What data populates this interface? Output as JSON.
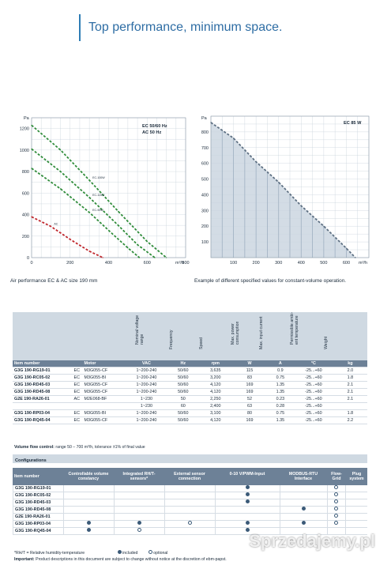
{
  "header": {
    "title": "Top performance, minimum space."
  },
  "chart_left": {
    "caption": "Air performance EC & AC size 190 mm",
    "legend": [
      "EC 50/60 Hz",
      "AC 50 Hz"
    ],
    "y_unit": "Pa",
    "x_unit": "m³/h",
    "y_ticks": [
      "1200",
      "1000",
      "800",
      "600",
      "400",
      "200",
      "0"
    ],
    "x_ticks": [
      "0",
      "200",
      "400",
      "600",
      "800"
    ],
    "curve_labels": [
      "EC-100W",
      "EC-115W",
      "EC-90W",
      "AC"
    ]
  },
  "chart_right": {
    "caption": "Example of different specified values for constant-volume operation.",
    "legend": "EC 85 W",
    "y_unit": "Pa",
    "x_unit": "m³/h",
    "y_ticks": [
      "800",
      "700",
      "600",
      "500",
      "400",
      "300",
      "200",
      "100"
    ],
    "x_ticks": [
      "100",
      "200",
      "300",
      "400",
      "500",
      "600"
    ]
  },
  "chart_data": [
    {
      "type": "line",
      "xlabel": "m³/h",
      "ylabel": "Pa",
      "xlim": [
        0,
        800
      ],
      "ylim": [
        0,
        1300
      ],
      "series": [
        {
          "name": "EC-100W",
          "x": [
            0,
            150,
            300,
            450,
            600,
            700
          ],
          "y": [
            1230,
            1000,
            720,
            430,
            150,
            0
          ]
        },
        {
          "name": "EC-115W",
          "x": [
            0,
            150,
            300,
            450,
            550,
            640
          ],
          "y": [
            1010,
            800,
            560,
            300,
            120,
            0
          ]
        },
        {
          "name": "EC-90W",
          "x": [
            0,
            150,
            300,
            420,
            500,
            560
          ],
          "y": [
            830,
            640,
            420,
            220,
            90,
            0
          ]
        },
        {
          "name": "AC",
          "x": [
            0,
            100,
            200,
            300,
            370
          ],
          "y": [
            380,
            290,
            170,
            60,
            0
          ]
        }
      ]
    },
    {
      "type": "area",
      "xlabel": "m³/h",
      "ylabel": "Pa",
      "xlim": [
        0,
        700
      ],
      "ylim": [
        0,
        900
      ],
      "series": [
        {
          "name": "EC 85 W",
          "x": [
            0,
            100,
            200,
            300,
            400,
            500,
            600,
            640
          ],
          "y": [
            860,
            760,
            610,
            480,
            330,
            200,
            60,
            0
          ]
        }
      ]
    }
  ],
  "specs": {
    "rot_headers": [
      "Nominal voltage range",
      "Frequency",
      "Speed",
      "Max. power consumption",
      "Max. input current",
      "Permissible ambi-ent temperature",
      "Weight"
    ],
    "columns": [
      "Item number",
      "",
      "Motor",
      "VAC",
      "Hz",
      "rpm",
      "W",
      "A",
      "°C",
      "kg"
    ],
    "rows": [
      [
        "G3G 190-RG19-01",
        "EC",
        "M3G055-CF",
        "1~200-240",
        "50/60",
        "3,635",
        "115",
        "0.9",
        "-25...+60",
        "2.0"
      ],
      [
        "G3G 190-RC05-02",
        "EC",
        "M3G055-BI",
        "1~200-240",
        "50/60",
        "3,200",
        "83",
        "0.75",
        "-25...+60",
        "1.8"
      ],
      [
        "G3G 190-RD45-03",
        "EC",
        "M3G055-CF",
        "1~200-240",
        "50/60",
        "4,120",
        "169",
        "1.35",
        "-25...+60",
        "2.1"
      ],
      [
        "G3G 190-RD45-08",
        "EC",
        "M3G055-CF",
        "1~200-240",
        "50/60",
        "4,120",
        "169",
        "1.35",
        "-25...+60",
        "2.1"
      ],
      [
        "G2E 190-RA26-01",
        "AC",
        "M2E068-BF",
        "1~230",
        "50",
        "2,250",
        "52",
        "0.23",
        "-25...+60",
        "2.1"
      ],
      [
        "",
        "",
        "",
        "1~230",
        "60",
        "2,400",
        "63",
        "0.28",
        "-25...+60",
        ""
      ],
      [
        "G3G 190-RP03-04",
        "EC",
        "M3G055-BI",
        "1~200-240",
        "50/60",
        "3,100",
        "80",
        "0.75",
        "-25...+60",
        "1.8"
      ],
      [
        "G3G 190-RQ45-04",
        "EC",
        "M3G055-CF",
        "1~200-240",
        "50/60",
        "4,120",
        "169",
        "1.35",
        "-25...+60",
        "2.2"
      ]
    ],
    "note_label": "Volume flow control:",
    "note_text": "range 50 – 700 m³/h, tolerance ±1% of final value"
  },
  "config": {
    "title": "Configurations",
    "headers": [
      "Item number",
      "Controllable volume constancy",
      "Integrated RH/T-sensors*",
      "External sensor connection",
      "0-10 V/PWM-Input",
      "MODBUS-RTU Interface",
      "Flow-Grid",
      "Plug system"
    ],
    "rows": [
      {
        "item": "G3G 190-RG19-01",
        "marks": [
          "",
          "",
          "",
          "f",
          "",
          "o",
          ""
        ]
      },
      {
        "item": "G3G 190-RC05-02",
        "marks": [
          "",
          "",
          "",
          "f",
          "",
          "o",
          ""
        ]
      },
      {
        "item": "G3G 190-RD45-03",
        "marks": [
          "",
          "",
          "",
          "f",
          "",
          "o",
          ""
        ]
      },
      {
        "item": "G3G 190-RD45-08",
        "marks": [
          "",
          "",
          "",
          "",
          "f",
          "o",
          ""
        ]
      },
      {
        "item": "G2E 190-RA26-01",
        "marks": [
          "",
          "",
          "",
          "",
          "",
          "o",
          ""
        ]
      },
      {
        "item": "G3G 190-RP03-04",
        "marks": [
          "f",
          "f",
          "o",
          "f",
          "f",
          "o",
          ""
        ]
      },
      {
        "item": "G3G 190-RQ45-04",
        "marks": [
          "f",
          "o",
          "",
          "f",
          "",
          "",
          ""
        ]
      }
    ],
    "legend_footnote": "*RH/T = Relative humidity-temperature",
    "legend_included": "included",
    "legend_optional": "optional",
    "important_label": "Important:",
    "important_text": "Product descriptions in this document are subject to change without notice at the discretion of ebm-papst."
  },
  "watermark": "Sprzedajemy.pl"
}
